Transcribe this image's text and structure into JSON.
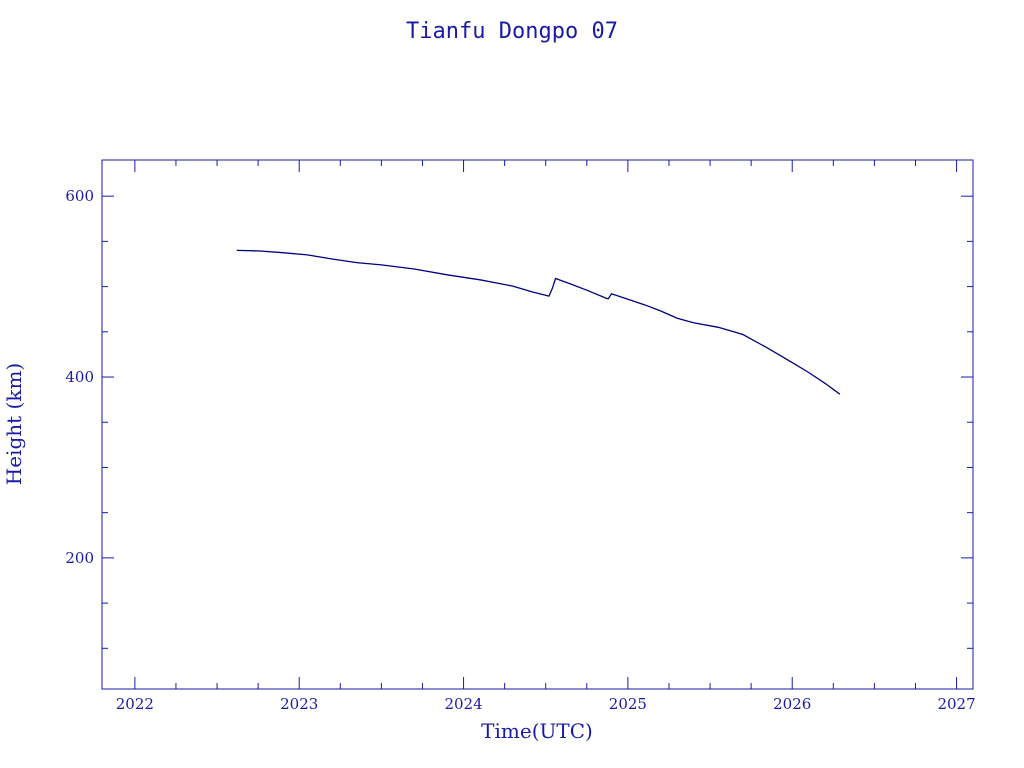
{
  "chart_data": {
    "type": "line",
    "title": "Tianfu Dongpo 07",
    "xlabel": "Time(UTC)",
    "ylabel": "Height (km)",
    "xlim": [
      2021.8,
      2027.1
    ],
    "ylim": [
      55,
      640
    ],
    "x_ticks": [
      2022,
      2023,
      2024,
      2025,
      2026,
      2027
    ],
    "y_ticks": [
      200,
      400,
      600
    ],
    "x_minor_step": 0.25,
    "y_minor_step": 50,
    "grid": false,
    "colors": {
      "text": "#1a1aa6",
      "line": "#000080"
    },
    "series": [
      {
        "x": [
          2022.62,
          2022.75,
          2022.9,
          2023.05,
          2023.2,
          2023.35,
          2023.5,
          2023.7,
          2023.9,
          2024.1,
          2024.3,
          2024.42,
          2024.52,
          2024.54,
          2024.56,
          2024.65,
          2024.75,
          2024.87,
          2024.88,
          2024.9,
          2025.0,
          2025.1,
          2025.2,
          2025.3,
          2025.4,
          2025.55,
          2025.7,
          2025.85,
          2026.0,
          2026.1,
          2026.2,
          2026.29
        ],
        "y": [
          540,
          539.5,
          537.5,
          535,
          530.5,
          526.5,
          524,
          519.5,
          513,
          507.5,
          500.5,
          494,
          489.5,
          498,
          509,
          503,
          496,
          487,
          486.5,
          492,
          486,
          480,
          473,
          465,
          460,
          455,
          447,
          432,
          416,
          405,
          393,
          381
        ]
      }
    ]
  }
}
